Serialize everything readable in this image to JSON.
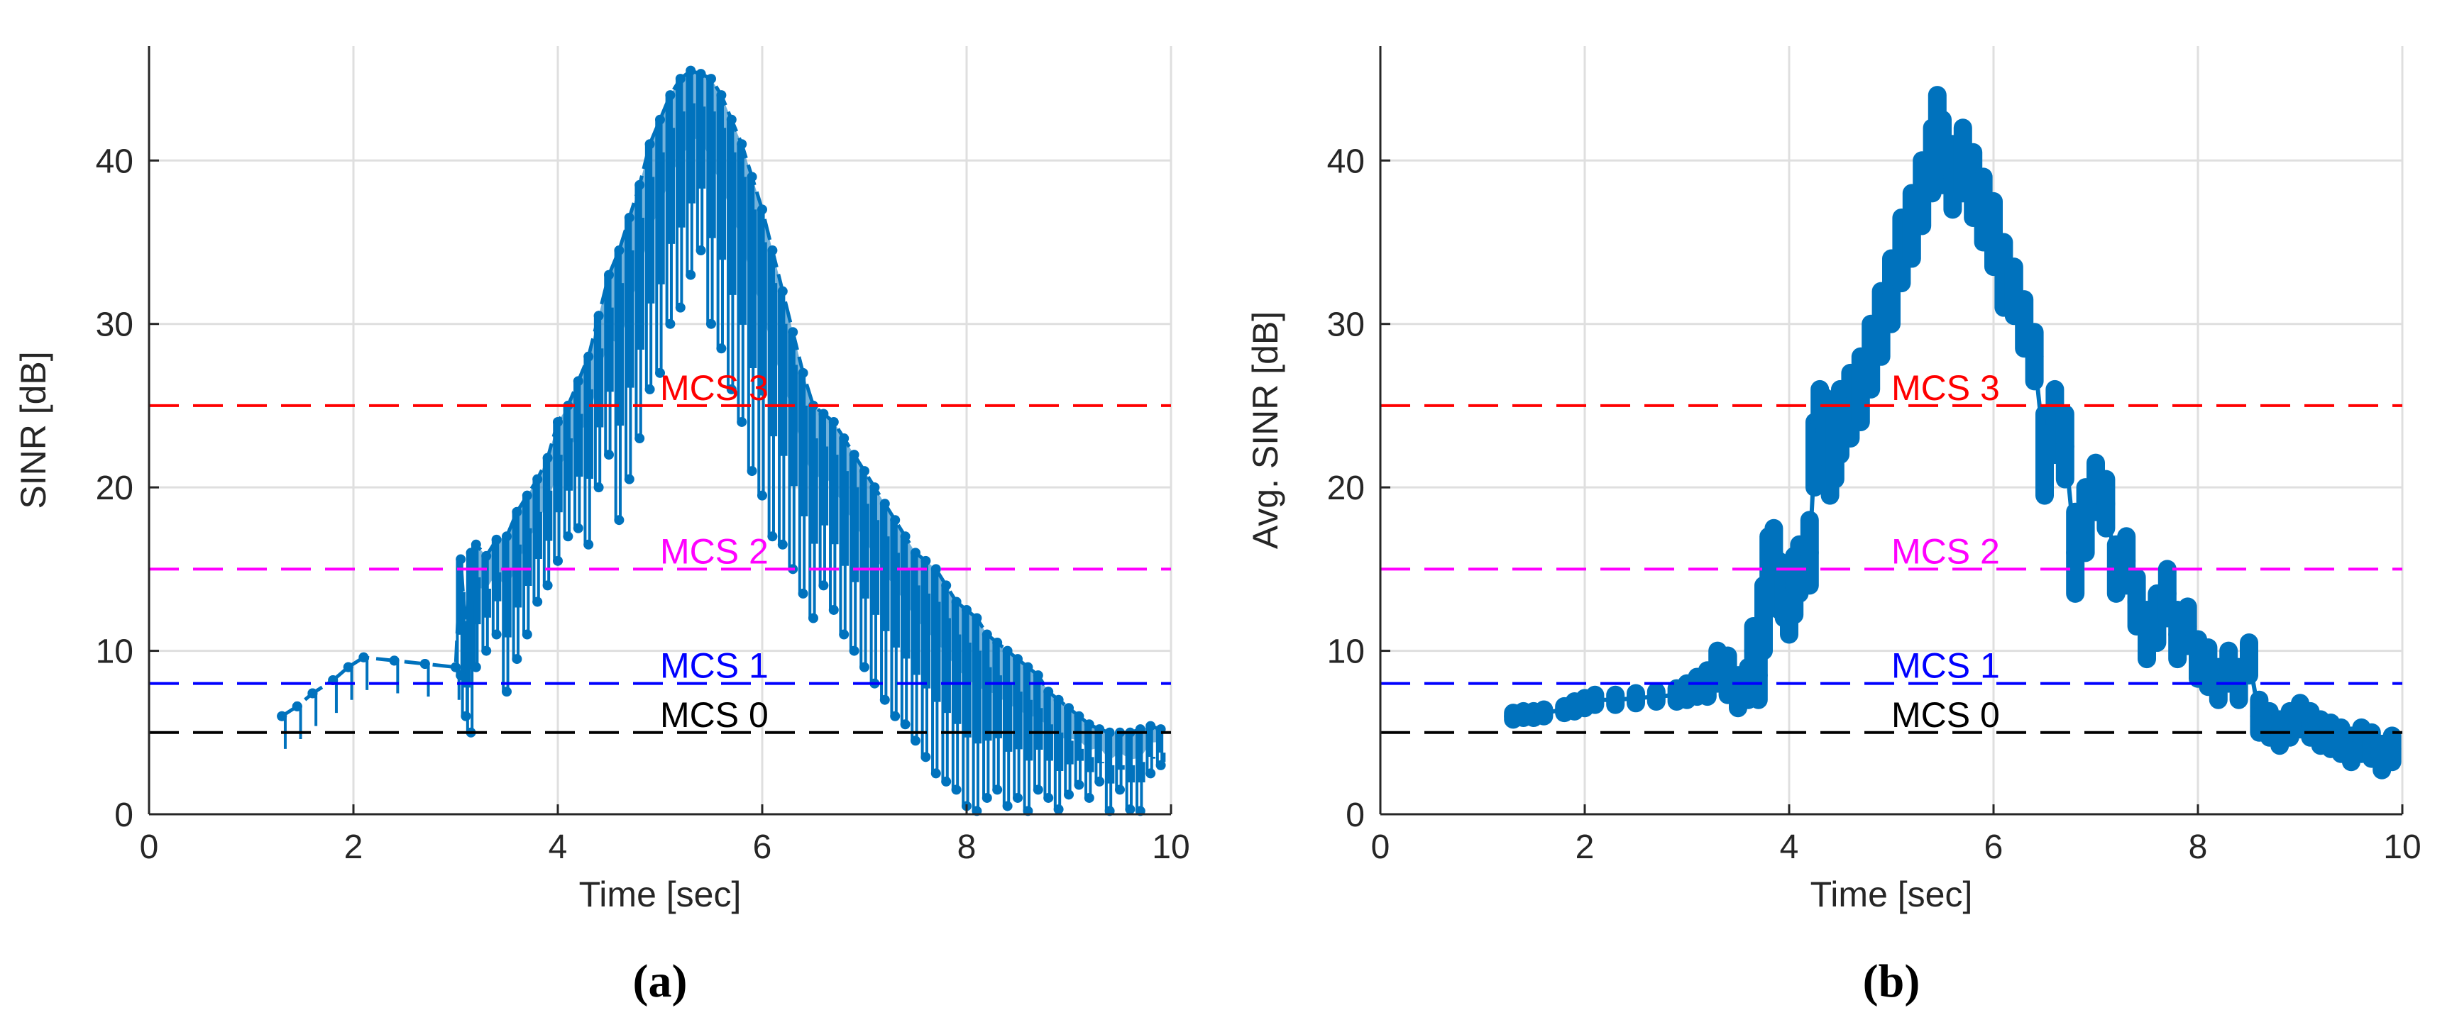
{
  "chart_data": [
    {
      "type": "line",
      "panel_label": "(a)",
      "title": "",
      "xlabel": "Time [sec]",
      "ylabel": "SINR [dB]",
      "xlim": [
        0,
        10
      ],
      "ylim": [
        0,
        47
      ],
      "xticks": [
        "0",
        "2",
        "4",
        "6",
        "8",
        "10"
      ],
      "yticks": [
        "0",
        "10",
        "20",
        "30",
        "40"
      ],
      "grid": true,
      "color": "#0072BD",
      "thresholds": [
        {
          "label": "MCS 3",
          "value": 25,
          "color": "#ff0000"
        },
        {
          "label": "MCS 2",
          "value": 15,
          "color": "#ff00ff"
        },
        {
          "label": "MCS 1",
          "value": 8,
          "color": "#0000ff"
        },
        {
          "label": "MCS 0",
          "value": 5,
          "color": "#000000"
        }
      ],
      "series": [
        {
          "name": "SINR",
          "x": [
            1.3,
            1.45,
            1.6,
            1.8,
            1.95,
            2.1,
            2.4,
            2.7,
            3.0,
            3.05,
            3.1,
            3.15,
            3.2,
            3.3,
            3.4,
            3.5,
            3.6,
            3.7,
            3.8,
            3.9,
            4.0,
            4.1,
            4.2,
            4.3,
            4.4,
            4.5,
            4.6,
            4.7,
            4.8,
            4.9,
            5.0,
            5.1,
            5.2,
            5.3,
            5.4,
            5.5,
            5.6,
            5.7,
            5.8,
            5.9,
            6.0,
            6.1,
            6.2,
            6.3,
            6.4,
            6.5,
            6.6,
            6.7,
            6.8,
            6.9,
            7.0,
            7.1,
            7.2,
            7.3,
            7.4,
            7.5,
            7.6,
            7.7,
            7.8,
            7.9,
            8.0,
            8.1,
            8.2,
            8.3,
            8.4,
            8.5,
            8.6,
            8.7,
            8.8,
            8.9,
            9.0,
            9.1,
            9.2,
            9.3,
            9.4,
            9.5,
            9.6,
            9.7,
            9.8,
            9.9
          ],
          "upper": [
            6.0,
            6.6,
            7.4,
            8.2,
            9.0,
            9.6,
            9.4,
            9.2,
            9.0,
            15.6,
            11.0,
            16.0,
            16.5,
            15.8,
            16.8,
            17.0,
            18.5,
            19.5,
            20.5,
            21.8,
            24.0,
            25.0,
            26.5,
            28.0,
            30.5,
            33.0,
            34.5,
            36.5,
            38.5,
            41.0,
            42.5,
            44.0,
            45.0,
            45.5,
            45.3,
            45.0,
            44.0,
            42.5,
            41.0,
            39.0,
            37.0,
            34.5,
            32.0,
            29.5,
            27.0,
            25.0,
            24.5,
            24.0,
            23.0,
            22.0,
            21.0,
            20.0,
            19.0,
            18.0,
            17.0,
            16.0,
            15.5,
            15.0,
            14.0,
            13.0,
            12.5,
            12.0,
            11.0,
            10.5,
            10.0,
            9.5,
            9.0,
            8.5,
            7.5,
            7.0,
            6.5,
            6.0,
            5.5,
            5.2,
            5.0,
            5.0,
            5.0,
            5.2,
            5.4,
            5.2
          ],
          "lower": [
            6.0,
            6.6,
            7.4,
            8.2,
            9.0,
            9.6,
            9.4,
            9.2,
            9.0,
            8.5,
            6.0,
            5.0,
            9.0,
            10.0,
            11.0,
            7.5,
            9.5,
            11.0,
            13.0,
            14.0,
            15.5,
            17.0,
            17.5,
            16.5,
            20.0,
            22.0,
            18.0,
            20.5,
            23.0,
            26.0,
            27.0,
            30.0,
            31.0,
            33.0,
            34.5,
            30.0,
            28.5,
            26.0,
            24.0,
            21.0,
            19.5,
            17.0,
            16.5,
            15.0,
            13.5,
            12.0,
            14.0,
            12.5,
            11.0,
            10.0,
            9.0,
            8.0,
            7.0,
            6.0,
            5.5,
            4.5,
            3.5,
            2.5,
            2.0,
            1.5,
            0.5,
            0.2,
            1.0,
            1.5,
            0.5,
            1.0,
            0.2,
            1.5,
            1.0,
            0.3,
            1.2,
            1.8,
            1.0,
            2.0,
            0.2,
            1.5,
            0.3,
            0.2,
            2.5,
            3.0
          ]
        }
      ]
    },
    {
      "type": "line",
      "panel_label": "(b)",
      "title": "",
      "xlabel": "Time [sec]",
      "ylabel": "Avg. SINR [dB]",
      "xlim": [
        0,
        10
      ],
      "ylim": [
        0,
        47
      ],
      "xticks": [
        "0",
        "2",
        "4",
        "6",
        "8",
        "10"
      ],
      "yticks": [
        "0",
        "10",
        "20",
        "30",
        "40"
      ],
      "grid": true,
      "color": "#0072BD",
      "thresholds": [
        {
          "label": "MCS 3",
          "value": 25,
          "color": "#ff0000"
        },
        {
          "label": "MCS 2",
          "value": 15,
          "color": "#ff00ff"
        },
        {
          "label": "MCS 1",
          "value": 8,
          "color": "#0000ff"
        },
        {
          "label": "MCS 0",
          "value": 5,
          "color": "#000000"
        }
      ],
      "series": [
        {
          "name": "Avg. SINR",
          "x": [
            1.3,
            1.4,
            1.5,
            1.6,
            1.8,
            1.9,
            2.0,
            2.1,
            2.3,
            2.5,
            2.7,
            2.9,
            3.0,
            3.1,
            3.2,
            3.3,
            3.4,
            3.5,
            3.6,
            3.65,
            3.7,
            3.75,
            3.8,
            3.85,
            3.9,
            3.95,
            4.0,
            4.05,
            4.1,
            4.2,
            4.25,
            4.3,
            4.35,
            4.4,
            4.45,
            4.5,
            4.6,
            4.7,
            4.8,
            4.9,
            5.0,
            5.1,
            5.2,
            5.3,
            5.4,
            5.45,
            5.5,
            5.6,
            5.7,
            5.8,
            5.9,
            6.0,
            6.1,
            6.2,
            6.3,
            6.4,
            6.5,
            6.6,
            6.7,
            6.8,
            6.9,
            7.0,
            7.1,
            7.2,
            7.3,
            7.4,
            7.5,
            7.6,
            7.7,
            7.8,
            7.9,
            8.0,
            8.1,
            8.2,
            8.3,
            8.4,
            8.5,
            8.6,
            8.7,
            8.8,
            8.9,
            9.0,
            9.1,
            9.2,
            9.3,
            9.4,
            9.5,
            9.6,
            9.7,
            9.8,
            9.9
          ],
          "y": [
            6.0,
            6.1,
            6.1,
            6.2,
            6.4,
            6.6,
            6.8,
            7.0,
            7.0,
            7.1,
            7.2,
            7.3,
            7.5,
            7.8,
            8.0,
            9.0,
            8.5,
            7.5,
            8.0,
            10.0,
            8.5,
            12.0,
            15.0,
            16.0,
            14.0,
            13.5,
            12.5,
            14.0,
            15.0,
            16.0,
            22.0,
            24.0,
            23.5,
            21.5,
            22.5,
            24.0,
            25.0,
            26.0,
            28.0,
            30.0,
            32.0,
            34.5,
            36.0,
            38.0,
            40.0,
            42.5,
            40.5,
            39.0,
            40.0,
            38.5,
            37.0,
            35.5,
            33.0,
            32.0,
            30.0,
            28.0,
            22.0,
            24.0,
            22.5,
            16.0,
            18.0,
            20.0,
            19.0,
            15.0,
            15.5,
            13.0,
            11.0,
            12.0,
            13.5,
            11.0,
            11.5,
            9.5,
            9.0,
            8.0,
            9.0,
            8.0,
            9.5,
            6.0,
            5.5,
            5.0,
            5.5,
            6.0,
            5.5,
            5.0,
            4.8,
            4.5,
            4.0,
            4.5,
            4.2,
            3.5,
            4.0
          ],
          "spread": [
            0.2,
            0.2,
            0.2,
            0.2,
            0.2,
            0.3,
            0.3,
            0.3,
            0.3,
            0.3,
            0.3,
            0.4,
            0.5,
            0.6,
            0.8,
            1.0,
            1.2,
            1.0,
            1.0,
            1.5,
            1.5,
            2.0,
            2.0,
            1.5,
            1.5,
            1.5,
            1.5,
            1.8,
            1.5,
            2.0,
            2.0,
            2.0,
            2.0,
            2.0,
            2.0,
            2.0,
            2.0,
            2.0,
            2.0,
            2.0,
            2.0,
            2.0,
            2.0,
            2.0,
            2.0,
            1.5,
            2.0,
            2.0,
            2.0,
            2.0,
            2.0,
            2.0,
            2.0,
            1.5,
            1.5,
            1.5,
            2.5,
            2.0,
            2.0,
            2.5,
            2.0,
            1.5,
            1.5,
            1.5,
            1.5,
            1.5,
            1.5,
            1.5,
            1.5,
            1.5,
            1.2,
            1.2,
            1.2,
            1.0,
            1.0,
            1.0,
            1.0,
            1.0,
            0.8,
            0.8,
            0.8,
            0.8,
            0.8,
            0.8,
            0.8,
            0.8,
            0.8,
            0.8,
            0.8,
            0.8,
            0.8
          ]
        }
      ]
    }
  ]
}
